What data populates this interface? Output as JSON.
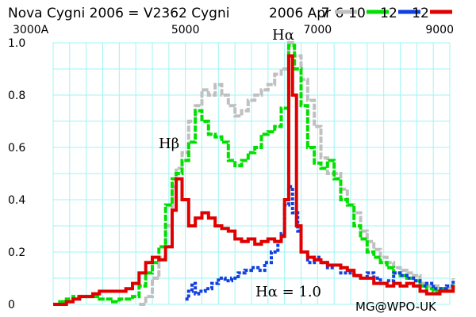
{
  "chart_data": {
    "type": "line",
    "title": "Nova Cygni 2006 = V2362 Cygni",
    "date_label": "2006 Apr 6",
    "credit": "MG@WPO-UK",
    "xlabel": "",
    "ylabel": "",
    "xlim": [
      3000,
      9000
    ],
    "ylim": [
      0,
      1.0
    ],
    "grid": true,
    "legend_position": "top-right",
    "x_ticks": [
      {
        "value": 3000,
        "label": "3000A"
      },
      {
        "value": 5000,
        "label": "5000"
      },
      {
        "value": 7000,
        "label": "7000"
      },
      {
        "value": 9000,
        "label": "9000"
      }
    ],
    "y_ticks": [
      {
        "value": 0,
        "label": "0"
      },
      {
        "value": 0.2,
        "label": "0.2"
      },
      {
        "value": 0.4,
        "label": "0.4"
      },
      {
        "value": 0.6,
        "label": "0.6"
      },
      {
        "value": 0.8,
        "label": "0.8"
      },
      {
        "value": 1.0,
        "label": "1.0"
      }
    ],
    "annotations": [
      {
        "text": "Hβ",
        "x": 4861,
        "y": 0.6
      },
      {
        "text": "Hα",
        "x": 6563,
        "y": 1.0
      },
      {
        "text": "Hα = 1.0",
        "x": 6300,
        "y": 0.02
      }
    ],
    "series": [
      {
        "name": "7",
        "color": "#c0c0c0",
        "points": [
          [
            4300,
            0.0
          ],
          [
            4400,
            0.03
          ],
          [
            4500,
            0.1
          ],
          [
            4600,
            0.18
          ],
          [
            4700,
            0.3
          ],
          [
            4800,
            0.45
          ],
          [
            4861,
            0.52
          ],
          [
            4950,
            0.58
          ],
          [
            5050,
            0.7
          ],
          [
            5150,
            0.76
          ],
          [
            5250,
            0.82
          ],
          [
            5350,
            0.8
          ],
          [
            5450,
            0.84
          ],
          [
            5550,
            0.8
          ],
          [
            5650,
            0.76
          ],
          [
            5750,
            0.72
          ],
          [
            5850,
            0.74
          ],
          [
            5950,
            0.78
          ],
          [
            6050,
            0.8
          ],
          [
            6150,
            0.82
          ],
          [
            6250,
            0.84
          ],
          [
            6350,
            0.88
          ],
          [
            6450,
            0.9
          ],
          [
            6563,
            1.0
          ],
          [
            6650,
            0.95
          ],
          [
            6750,
            0.86
          ],
          [
            6850,
            0.78
          ],
          [
            6950,
            0.68
          ],
          [
            7050,
            0.56
          ],
          [
            7150,
            0.5
          ],
          [
            7250,
            0.5
          ],
          [
            7350,
            0.44
          ],
          [
            7450,
            0.38
          ],
          [
            7550,
            0.35
          ],
          [
            7650,
            0.28
          ],
          [
            7750,
            0.24
          ],
          [
            7850,
            0.21
          ],
          [
            7950,
            0.18
          ],
          [
            8050,
            0.16
          ],
          [
            8150,
            0.14
          ],
          [
            8250,
            0.13
          ],
          [
            8350,
            0.12
          ],
          [
            8450,
            0.11
          ],
          [
            8550,
            0.08
          ],
          [
            8650,
            0.07
          ],
          [
            8750,
            0.07
          ],
          [
            8850,
            0.06
          ],
          [
            8950,
            0.06
          ],
          [
            9050,
            0.1
          ]
        ]
      },
      {
        "name": "10",
        "color": "#00e000",
        "points": [
          [
            3000,
            0.0
          ],
          [
            3100,
            0.01
          ],
          [
            3200,
            0.02
          ],
          [
            3300,
            0.03
          ],
          [
            3400,
            0.03
          ],
          [
            3500,
            0.03
          ],
          [
            3600,
            0.03
          ],
          [
            3700,
            0.02
          ],
          [
            3800,
            0.02
          ],
          [
            3900,
            0.01
          ],
          [
            4000,
            0.02
          ],
          [
            4100,
            0.02
          ],
          [
            4200,
            0.03
          ],
          [
            4300,
            0.07
          ],
          [
            4400,
            0.12
          ],
          [
            4500,
            0.16
          ],
          [
            4600,
            0.22
          ],
          [
            4700,
            0.38
          ],
          [
            4800,
            0.48
          ],
          [
            4861,
            0.5
          ],
          [
            4950,
            0.55
          ],
          [
            5050,
            0.62
          ],
          [
            5150,
            0.74
          ],
          [
            5250,
            0.7
          ],
          [
            5350,
            0.65
          ],
          [
            5450,
            0.64
          ],
          [
            5550,
            0.62
          ],
          [
            5650,
            0.55
          ],
          [
            5750,
            0.53
          ],
          [
            5850,
            0.55
          ],
          [
            5950,
            0.58
          ],
          [
            6050,
            0.6
          ],
          [
            6150,
            0.65
          ],
          [
            6250,
            0.66
          ],
          [
            6350,
            0.68
          ],
          [
            6450,
            0.75
          ],
          [
            6563,
            0.99
          ],
          [
            6650,
            0.9
          ],
          [
            6750,
            0.76
          ],
          [
            6850,
            0.6
          ],
          [
            6950,
            0.54
          ],
          [
            7050,
            0.52
          ],
          [
            7150,
            0.55
          ],
          [
            7250,
            0.48
          ],
          [
            7350,
            0.4
          ],
          [
            7450,
            0.38
          ],
          [
            7550,
            0.3
          ],
          [
            7650,
            0.25
          ],
          [
            7750,
            0.2
          ],
          [
            7850,
            0.18
          ],
          [
            7950,
            0.16
          ],
          [
            8050,
            0.14
          ],
          [
            8150,
            0.12
          ],
          [
            8250,
            0.11
          ],
          [
            8350,
            0.1
          ],
          [
            8450,
            0.09
          ],
          [
            8550,
            0.07
          ],
          [
            8650,
            0.06
          ],
          [
            8750,
            0.05
          ],
          [
            8850,
            0.06
          ],
          [
            8950,
            0.05
          ],
          [
            9050,
            0.08
          ]
        ]
      },
      {
        "name": "12",
        "color": "#1040e0",
        "points": [
          [
            5000,
            0.02
          ],
          [
            5050,
            0.05
          ],
          [
            5100,
            0.08
          ],
          [
            5150,
            0.04
          ],
          [
            5200,
            0.05
          ],
          [
            5300,
            0.06
          ],
          [
            5400,
            0.08
          ],
          [
            5500,
            0.1
          ],
          [
            5600,
            0.09
          ],
          [
            5700,
            0.1
          ],
          [
            5800,
            0.12
          ],
          [
            5900,
            0.13
          ],
          [
            6000,
            0.14
          ],
          [
            6100,
            0.13
          ],
          [
            6200,
            0.16
          ],
          [
            6300,
            0.2
          ],
          [
            6400,
            0.24
          ],
          [
            6450,
            0.27
          ],
          [
            6500,
            0.38
          ],
          [
            6563,
            0.45
          ],
          [
            6620,
            0.35
          ],
          [
            6700,
            0.28
          ],
          [
            6750,
            0.2
          ],
          [
            6850,
            0.16
          ],
          [
            6950,
            0.18
          ],
          [
            7050,
            0.16
          ],
          [
            7150,
            0.14
          ],
          [
            7250,
            0.15
          ],
          [
            7350,
            0.12
          ],
          [
            7450,
            0.12
          ],
          [
            7550,
            0.11
          ],
          [
            7650,
            0.1
          ],
          [
            7750,
            0.12
          ],
          [
            7850,
            0.1
          ],
          [
            7950,
            0.08
          ],
          [
            8050,
            0.09
          ],
          [
            8150,
            0.12
          ],
          [
            8250,
            0.11
          ],
          [
            8350,
            0.1
          ],
          [
            8450,
            0.09
          ],
          [
            8550,
            0.07
          ],
          [
            8650,
            0.08
          ],
          [
            8750,
            0.06
          ],
          [
            8850,
            0.06
          ],
          [
            8950,
            0.07
          ],
          [
            9050,
            0.09
          ]
        ]
      },
      {
        "name": "12",
        "color": "#e00000",
        "points": [
          [
            3000,
            0.0
          ],
          [
            3100,
            0.0
          ],
          [
            3200,
            0.01
          ],
          [
            3300,
            0.02
          ],
          [
            3400,
            0.03
          ],
          [
            3500,
            0.03
          ],
          [
            3600,
            0.04
          ],
          [
            3700,
            0.05
          ],
          [
            3800,
            0.05
          ],
          [
            3900,
            0.05
          ],
          [
            4000,
            0.05
          ],
          [
            4100,
            0.06
          ],
          [
            4200,
            0.08
          ],
          [
            4300,
            0.12
          ],
          [
            4400,
            0.16
          ],
          [
            4500,
            0.18
          ],
          [
            4600,
            0.17
          ],
          [
            4700,
            0.22
          ],
          [
            4800,
            0.36
          ],
          [
            4861,
            0.48
          ],
          [
            4950,
            0.4
          ],
          [
            5050,
            0.3
          ],
          [
            5150,
            0.33
          ],
          [
            5250,
            0.35
          ],
          [
            5350,
            0.33
          ],
          [
            5450,
            0.3
          ],
          [
            5550,
            0.29
          ],
          [
            5650,
            0.28
          ],
          [
            5750,
            0.25
          ],
          [
            5850,
            0.24
          ],
          [
            5950,
            0.25
          ],
          [
            6050,
            0.23
          ],
          [
            6150,
            0.24
          ],
          [
            6250,
            0.25
          ],
          [
            6350,
            0.24
          ],
          [
            6450,
            0.26
          ],
          [
            6500,
            0.4
          ],
          [
            6563,
            0.95
          ],
          [
            6620,
            0.8
          ],
          [
            6680,
            0.3
          ],
          [
            6750,
            0.2
          ],
          [
            6850,
            0.18
          ],
          [
            6950,
            0.17
          ],
          [
            7050,
            0.16
          ],
          [
            7150,
            0.15
          ],
          [
            7250,
            0.15
          ],
          [
            7350,
            0.14
          ],
          [
            7450,
            0.13
          ],
          [
            7550,
            0.11
          ],
          [
            7650,
            0.1
          ],
          [
            7750,
            0.1
          ],
          [
            7850,
            0.08
          ],
          [
            7950,
            0.08
          ],
          [
            8050,
            0.07
          ],
          [
            8150,
            0.08
          ],
          [
            8250,
            0.07
          ],
          [
            8350,
            0.08
          ],
          [
            8450,
            0.07
          ],
          [
            8550,
            0.05
          ],
          [
            8650,
            0.04
          ],
          [
            8750,
            0.04
          ],
          [
            8850,
            0.05
          ],
          [
            8950,
            0.05
          ],
          [
            9050,
            0.07
          ]
        ]
      }
    ]
  }
}
